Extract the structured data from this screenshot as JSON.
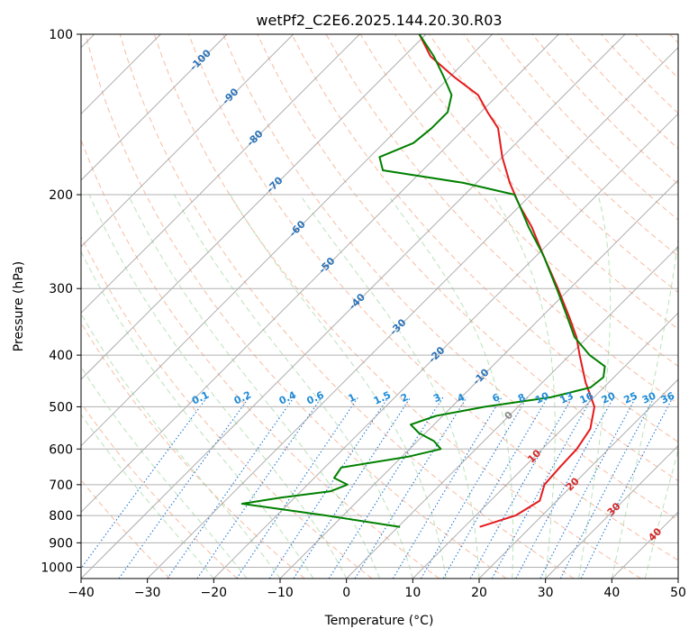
{
  "chart_data": {
    "type": "line",
    "subtype": "skew-t log-p diagram",
    "title": "wetPf2_C2E6.2025.144.20.30.R03",
    "xlabel": "Temperature (°C)",
    "ylabel": "Pressure (hPa)",
    "xlim": [
      -40,
      50
    ],
    "ylim": [
      1050,
      100
    ],
    "x_ticks": [
      -40,
      -30,
      -20,
      -10,
      0,
      10,
      20,
      30,
      40,
      50
    ],
    "y_ticks": [
      100,
      200,
      300,
      400,
      500,
      600,
      700,
      800,
      900,
      1000
    ],
    "x_tick_labels": [
      "−40",
      "−30",
      "−20",
      "−10",
      "0",
      "10",
      "20",
      "30",
      "40",
      "50"
    ],
    "y_tick_labels": [
      "100",
      "200",
      "300",
      "400",
      "500",
      "600",
      "700",
      "800",
      "900",
      "1000"
    ],
    "grid": true,
    "isotherm_labels": [
      "-100",
      "-90",
      "-80",
      "-70",
      "-60",
      "-50",
      "-40",
      "-30",
      "-20",
      "-10",
      "0",
      "10",
      "20",
      "30",
      "40"
    ],
    "isotherm_label_values": [
      -100,
      -90,
      -80,
      -70,
      -60,
      -50,
      -40,
      -30,
      -20,
      -10,
      0,
      10,
      20,
      30,
      40
    ],
    "mixing_ratio_labels": [
      "0.1",
      "0.2",
      "0.4",
      "0.6",
      "1",
      "1.5",
      "2",
      "3",
      "4",
      "6",
      "8",
      "10",
      "13",
      "16",
      "20",
      "25",
      "30",
      "36"
    ],
    "mixing_ratio_values": [
      0.1,
      0.2,
      0.4,
      0.6,
      1,
      1.5,
      2,
      3,
      4,
      6,
      8,
      10,
      13,
      16,
      20,
      25,
      30,
      36
    ],
    "series": [
      {
        "name": "Temperature",
        "color": "#e41a1c",
        "pressure": [
          840,
          800,
          750,
          700,
          650,
          600,
          550,
          500,
          450,
          400,
          370,
          340,
          300,
          260,
          230,
          210,
          190,
          170,
          150,
          140,
          130,
          120,
          110,
          100
        ],
        "values": [
          12.3,
          16.0,
          17.4,
          15.7,
          15.4,
          15.2,
          14.2,
          11.5,
          6.5,
          1.5,
          -1.7,
          -5.7,
          -11.8,
          -19.0,
          -25.0,
          -30.0,
          -35.0,
          -40.0,
          -45.0,
          -49.0,
          -53.0,
          -59.5,
          -66.0,
          -71.0
        ]
      },
      {
        "name": "Dewpoint",
        "color": "#008000",
        "pressure": [
          840,
          800,
          760,
          740,
          720,
          700,
          680,
          650,
          620,
          600,
          580,
          560,
          540,
          520,
          500,
          480,
          460,
          440,
          420,
          400,
          370,
          340,
          300,
          260,
          230,
          210,
          200,
          190,
          180,
          170,
          160,
          150,
          140,
          130,
          120,
          110,
          100
        ],
        "values": [
          0.3,
          -12.5,
          -27.0,
          -22.0,
          -15.5,
          -14.0,
          -17.0,
          -17.5,
          -9.0,
          -5.3,
          -7.5,
          -11.0,
          -13.5,
          -11.0,
          -5.0,
          3.5,
          8.0,
          8.4,
          7.0,
          3.0,
          -2.0,
          -6.0,
          -12.0,
          -19.0,
          -25.5,
          -30.0,
          -32.5,
          -42.0,
          -56.0,
          -58.5,
          -55.5,
          -55.0,
          -55.0,
          -57.0,
          -61.0,
          -65.5,
          -71.0
        ]
      }
    ]
  }
}
